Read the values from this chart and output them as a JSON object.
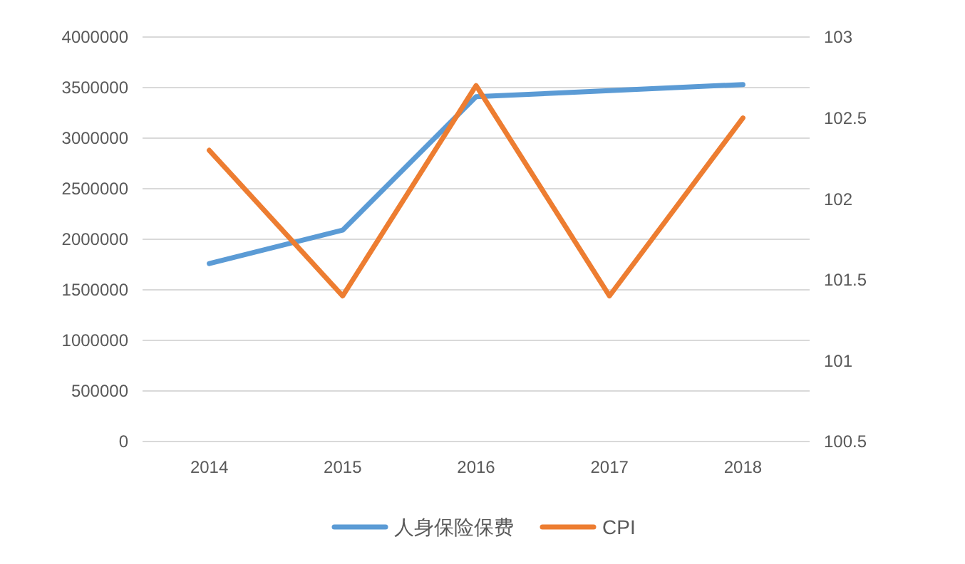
{
  "chart_data": {
    "type": "line",
    "categories": [
      "2014",
      "2015",
      "2016",
      "2017",
      "2018"
    ],
    "series": [
      {
        "name": "人身保险保费",
        "color": "#5b9bd5",
        "values": [
          1760000,
          2090000,
          3410000,
          3470000,
          3530000
        ]
      },
      {
        "name": "CPI",
        "color": "#ed7d31",
        "axis": "y2",
        "values": [
          102.3,
          101.4,
          102.7,
          101.4,
          102.5
        ]
      }
    ],
    "ylim": [
      0,
      4000000
    ],
    "yticks": [
      0,
      500000,
      1000000,
      1500000,
      2000000,
      2500000,
      3000000,
      3500000,
      4000000
    ],
    "y2lim": [
      100.5,
      103
    ],
    "y2ticks": [
      100.5,
      101,
      101.5,
      102,
      102.5,
      103
    ],
    "grid": "y",
    "legend": "bottom",
    "marker": "none",
    "line_style": "solid"
  }
}
